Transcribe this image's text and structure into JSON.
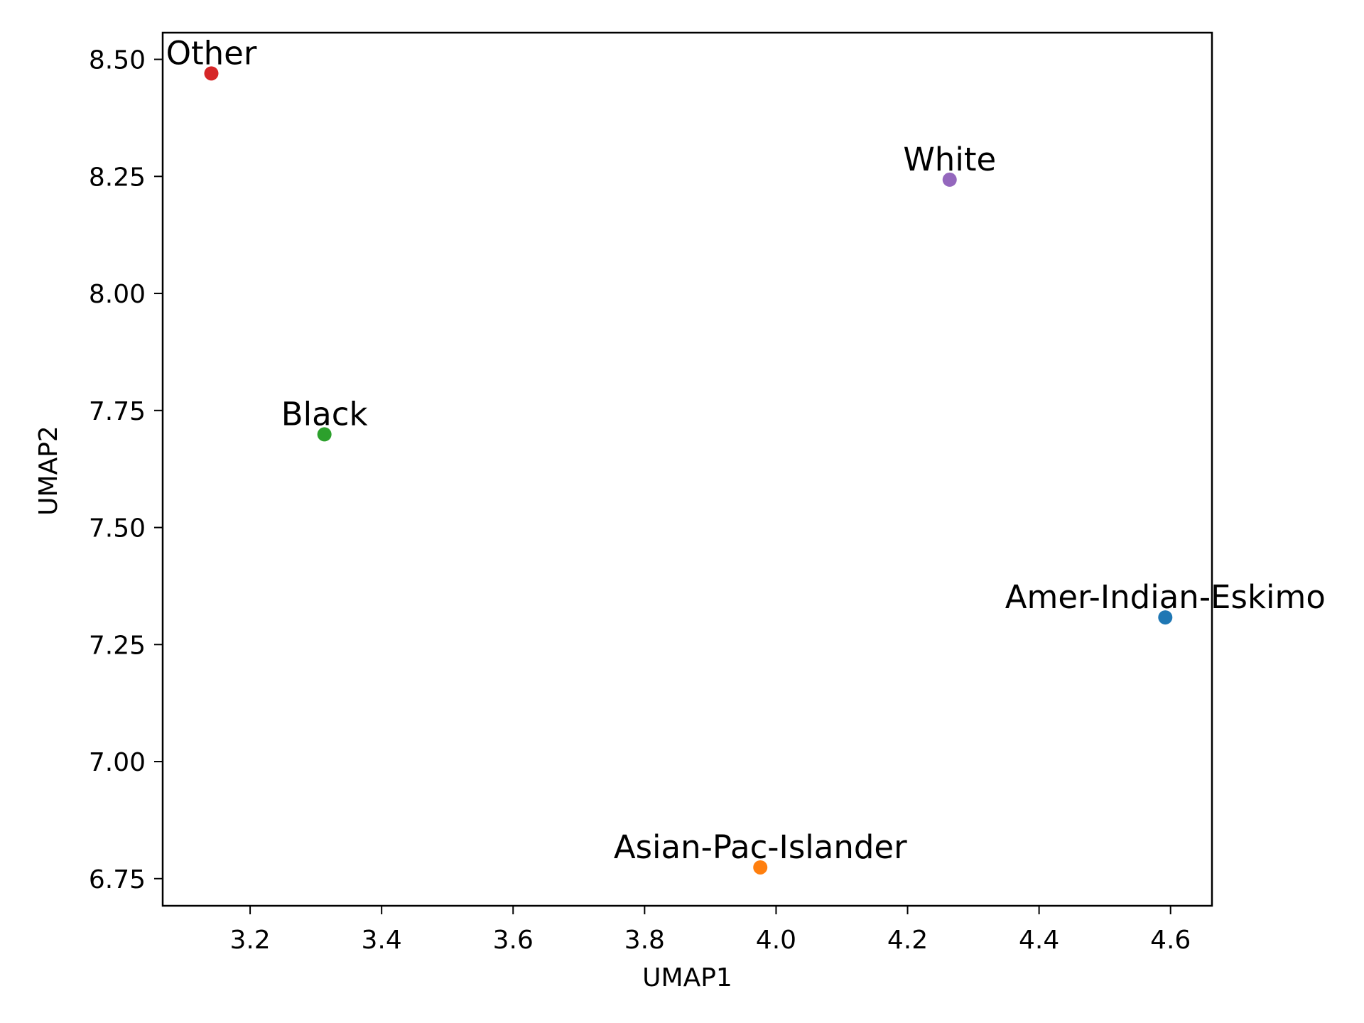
{
  "chart_data": {
    "type": "scatter",
    "title": "",
    "xlabel": "UMAP1",
    "ylabel": "UMAP2",
    "xlim": [
      3.067,
      4.663
    ],
    "ylim": [
      6.692,
      8.557
    ],
    "xticks": [
      3.2,
      3.4,
      3.6,
      3.8,
      4.0,
      4.2,
      4.4,
      4.6
    ],
    "xtick_labels": [
      "3.2",
      "3.4",
      "3.6",
      "3.8",
      "4.0",
      "4.2",
      "4.4",
      "4.6"
    ],
    "yticks": [
      6.75,
      7.0,
      7.25,
      7.5,
      7.75,
      8.0,
      8.25,
      8.5
    ],
    "ytick_labels": [
      "6.75",
      "7.00",
      "7.25",
      "7.50",
      "7.75",
      "8.00",
      "8.25",
      "8.50"
    ],
    "grid": false,
    "legend": false,
    "points": [
      {
        "label": "Amer-Indian-Eskimo",
        "x": 4.592,
        "y": 7.308,
        "color": "#1f77b4"
      },
      {
        "label": "Asian-Pac-Islander",
        "x": 3.976,
        "y": 6.774,
        "color": "#ff7f0e"
      },
      {
        "label": "Black",
        "x": 3.313,
        "y": 7.699,
        "color": "#2ca02c"
      },
      {
        "label": "Other",
        "x": 3.141,
        "y": 8.47,
        "color": "#d62728"
      },
      {
        "label": "White",
        "x": 4.264,
        "y": 8.243,
        "color": "#9467bd"
      }
    ]
  }
}
